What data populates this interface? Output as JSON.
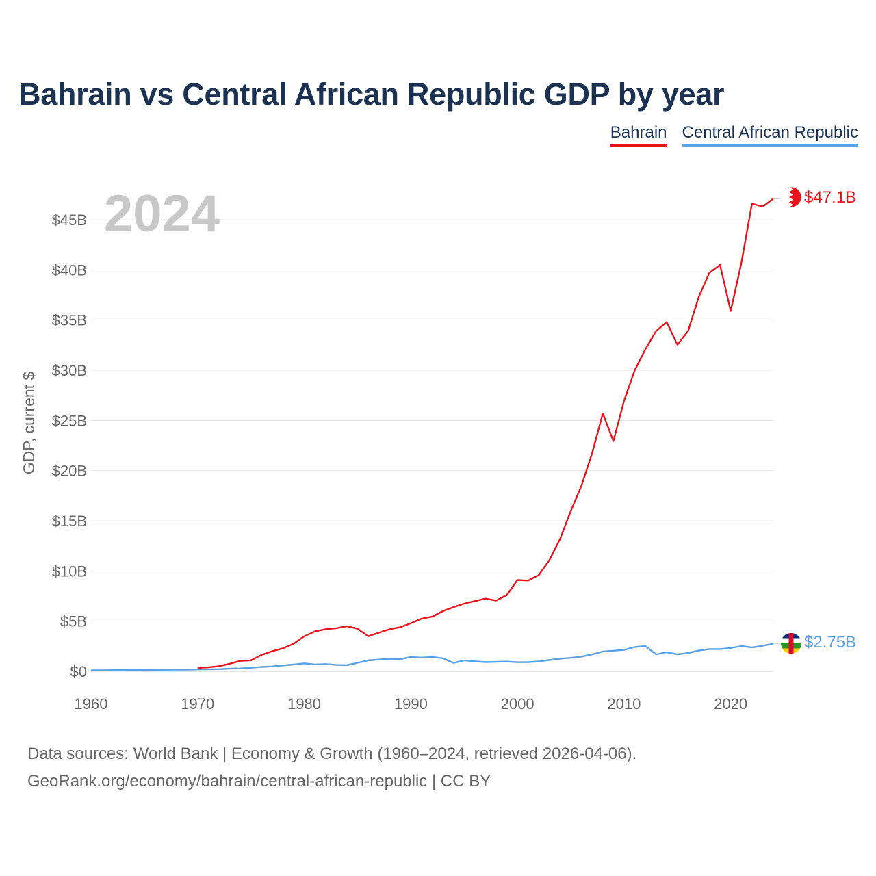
{
  "title": "Bahrain vs Central African Republic GDP by year",
  "legend": [
    {
      "label": "Bahrain",
      "color": "#e8141d"
    },
    {
      "label": "Central African Republic",
      "color": "#5aa1e3"
    }
  ],
  "footer": {
    "line1": "Data sources: World Bank | Economy & Growth (1960–2024, retrieved 2026-04-06).",
    "line2": "GeoRank.org/economy/bahrain/central-african-republic | CC BY"
  },
  "chart_data": {
    "type": "line",
    "title": "Bahrain vs Central African Republic GDP by year",
    "current_year_label": "2024",
    "ylabel": "GDP, current $",
    "xlabel": "",
    "xlim": [
      1960,
      2024
    ],
    "ylim": [
      0,
      45
    ],
    "y_unit": "billion US$",
    "x_ticks": [
      1960,
      1970,
      1980,
      1990,
      2000,
      2010,
      2020
    ],
    "x_tick_labels": [
      "1960",
      "1970",
      "1980",
      "1990",
      "2000",
      "2010",
      "2020"
    ],
    "y_ticks": [
      0,
      5,
      10,
      15,
      20,
      25,
      30,
      35,
      40,
      45
    ],
    "y_tick_labels": [
      "$0",
      "$5B",
      "$10B",
      "$15B",
      "$20B",
      "$25B",
      "$30B",
      "$35B",
      "$40B",
      "$45B"
    ],
    "grid": true,
    "series": [
      {
        "name": "Bahrain",
        "color": "#e8141d",
        "end_label": "$47.1B",
        "x": [
          1970,
          1971,
          1972,
          1973,
          1974,
          1975,
          1976,
          1977,
          1978,
          1979,
          1980,
          1981,
          1982,
          1983,
          1984,
          1985,
          1986,
          1987,
          1988,
          1989,
          1990,
          1991,
          1992,
          1993,
          1994,
          1995,
          1996,
          1997,
          1998,
          1999,
          2000,
          2001,
          2002,
          2003,
          2004,
          2005,
          2006,
          2007,
          2008,
          2009,
          2010,
          2011,
          2012,
          2013,
          2014,
          2015,
          2016,
          2017,
          2018,
          2019,
          2020,
          2021,
          2022,
          2023,
          2024
        ],
        "values": [
          0.35,
          0.4,
          0.52,
          0.76,
          1.04,
          1.1,
          1.65,
          2.01,
          2.3,
          2.75,
          3.5,
          3.98,
          4.2,
          4.3,
          4.5,
          4.25,
          3.5,
          3.85,
          4.2,
          4.4,
          4.8,
          5.25,
          5.45,
          6.0,
          6.4,
          6.75,
          7.0,
          7.25,
          7.05,
          7.6,
          9.1,
          9.05,
          9.6,
          11.1,
          13.2,
          15.97,
          18.5,
          21.73,
          25.7,
          22.94,
          26.97,
          30.0,
          32.1,
          33.9,
          34.8,
          32.55,
          33.9,
          37.3,
          39.7,
          40.5,
          35.9,
          40.7,
          46.6,
          46.3,
          47.1
        ]
      },
      {
        "name": "Central African Republic",
        "color": "#5aa1e3",
        "end_label": "$2.75B",
        "x": [
          1960,
          1961,
          1962,
          1963,
          1964,
          1965,
          1966,
          1967,
          1968,
          1969,
          1970,
          1971,
          1972,
          1973,
          1974,
          1975,
          1976,
          1977,
          1978,
          1979,
          1980,
          1981,
          1982,
          1983,
          1984,
          1985,
          1986,
          1987,
          1988,
          1989,
          1990,
          1991,
          1992,
          1993,
          1994,
          1995,
          1996,
          1997,
          1998,
          1999,
          2000,
          2001,
          2002,
          2003,
          2004,
          2005,
          2006,
          2007,
          2008,
          2009,
          2010,
          2011,
          2012,
          2013,
          2014,
          2015,
          2016,
          2017,
          2018,
          2019,
          2020,
          2021,
          2022,
          2023,
          2024
        ],
        "values": [
          0.11,
          0.11,
          0.12,
          0.13,
          0.13,
          0.14,
          0.15,
          0.16,
          0.17,
          0.17,
          0.19,
          0.2,
          0.22,
          0.27,
          0.29,
          0.36,
          0.44,
          0.49,
          0.59,
          0.68,
          0.8,
          0.69,
          0.73,
          0.64,
          0.62,
          0.85,
          1.1,
          1.18,
          1.26,
          1.22,
          1.44,
          1.38,
          1.44,
          1.31,
          0.84,
          1.1,
          1.0,
          0.92,
          0.95,
          0.98,
          0.91,
          0.92,
          0.99,
          1.14,
          1.27,
          1.35,
          1.47,
          1.7,
          1.98,
          2.06,
          2.14,
          2.43,
          2.52,
          1.69,
          1.91,
          1.7,
          1.83,
          2.07,
          2.22,
          2.22,
          2.33,
          2.52,
          2.38,
          2.55,
          2.75
        ]
      }
    ]
  }
}
